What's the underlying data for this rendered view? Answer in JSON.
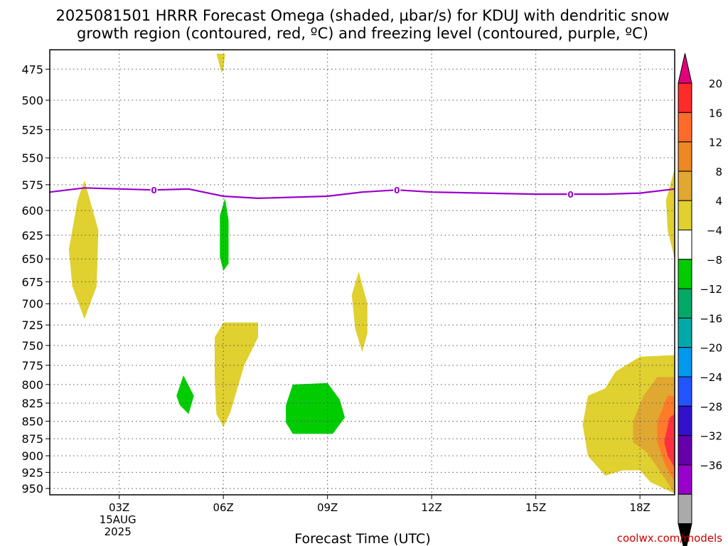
{
  "title_line1": "2025081501 HRRR Forecast Omega (shaded, µbar/s) for KDUJ with dendritic snow",
  "title_line2": "growth region (contoured, red, ºC) and freezing level (contoured, purple, ºC)",
  "credit": "coolwx.com/models",
  "chart_data": {
    "type": "heatmap",
    "title": "2025081501 HRRR Forecast Omega (shaded, µbar/s) for KDUJ with dendritic snow growth region (contoured, red, ºC) and freezing level (contoured, purple, ºC)",
    "xlabel": "Forecast Time (UTC)",
    "ylabel": "",
    "x_ticks": [
      {
        "hour": 3,
        "label": "03Z",
        "sub1": "15AUG",
        "sub2": "2025"
      },
      {
        "hour": 6,
        "label": "06Z"
      },
      {
        "hour": 9,
        "label": "09Z"
      },
      {
        "hour": 12,
        "label": "12Z"
      },
      {
        "hour": 15,
        "label": "15Z"
      },
      {
        "hour": 18,
        "label": "18Z"
      }
    ],
    "xlim": [
      1,
      19
    ],
    "y_levels": [
      475,
      500,
      525,
      550,
      575,
      600,
      625,
      650,
      675,
      700,
      725,
      750,
      775,
      800,
      825,
      850,
      875,
      900,
      925,
      950
    ],
    "ylim_hpa": [
      460,
      960
    ],
    "y_axis": "log-pressure (inverted)",
    "grid": true,
    "colorbar": {
      "labels": [
        "20",
        "16",
        "12",
        "8",
        "4",
        "−4",
        "−8",
        "−12",
        "−16",
        "−20",
        "−24",
        "−28",
        "−32",
        "−36"
      ],
      "colors": [
        "#e0007a",
        "#ff2a2a",
        "#ff6a2a",
        "#ee8822",
        "#e0a830",
        "#e0d030",
        "#ffffff",
        "#00cc00",
        "#00aa66",
        "#00aaaa",
        "#0099ee",
        "#2255ff",
        "#3311cc",
        "#6600aa",
        "#9900cc",
        "#aaaaaa",
        "#000000"
      ]
    },
    "freezing_level": {
      "label": "0",
      "color": "#9900cc",
      "points": [
        [
          1.0,
          582
        ],
        [
          2.0,
          578
        ],
        [
          4.0,
          580
        ],
        [
          5.0,
          579
        ],
        [
          6.0,
          586
        ],
        [
          7.0,
          588
        ],
        [
          9.0,
          586
        ],
        [
          10.0,
          582
        ],
        [
          11.0,
          580
        ],
        [
          12.0,
          582
        ],
        [
          15.0,
          584
        ],
        [
          17.0,
          584
        ],
        [
          18.0,
          583
        ],
        [
          19.0,
          579
        ]
      ],
      "label_hours": [
        4,
        11,
        16
      ]
    },
    "omega_regions": [
      {
        "level": "4 to 8",
        "color": "#e0d030",
        "points": [
          [
            2.0,
            571
          ],
          [
            2.4,
            620
          ],
          [
            2.35,
            680
          ],
          [
            2.0,
            718
          ],
          [
            1.65,
            680
          ],
          [
            1.55,
            640
          ],
          [
            1.8,
            590
          ]
        ]
      },
      {
        "level": "4 to 8",
        "color": "#e0d030",
        "points": [
          [
            5.8,
            463
          ],
          [
            6.05,
            463
          ],
          [
            6.0,
            475
          ],
          [
            5.95,
            478
          ]
        ]
      },
      {
        "level": "-4 to -8",
        "color": "#00cc00",
        "points": [
          [
            6.05,
            588
          ],
          [
            6.15,
            610
          ],
          [
            6.15,
            655
          ],
          [
            6.0,
            663
          ],
          [
            5.9,
            648
          ],
          [
            5.9,
            605
          ]
        ]
      },
      {
        "level": "4 to 8",
        "color": "#e0d030",
        "points": [
          [
            9.9,
            664
          ],
          [
            10.15,
            700
          ],
          [
            10.15,
            735
          ],
          [
            10.0,
            758
          ],
          [
            9.8,
            730
          ],
          [
            9.7,
            690
          ]
        ]
      },
      {
        "level": "4 to 8",
        "color": "#e0d030",
        "points": [
          [
            6.0,
            722
          ],
          [
            7.0,
            722
          ],
          [
            7.0,
            740
          ],
          [
            6.6,
            775
          ],
          [
            6.2,
            838
          ],
          [
            6.0,
            858
          ],
          [
            5.8,
            840
          ],
          [
            5.75,
            790
          ],
          [
            5.75,
            740
          ]
        ]
      },
      {
        "level": "-4 to -8",
        "color": "#00cc00",
        "points": [
          [
            4.85,
            788
          ],
          [
            5.15,
            815
          ],
          [
            5.0,
            840
          ],
          [
            4.75,
            828
          ],
          [
            4.65,
            815
          ]
        ]
      },
      {
        "level": "-4 to -8",
        "color": "#00cc00",
        "points": [
          [
            8.0,
            800
          ],
          [
            9.0,
            798
          ],
          [
            9.35,
            820
          ],
          [
            9.5,
            845
          ],
          [
            9.15,
            868
          ],
          [
            8.0,
            868
          ],
          [
            7.8,
            852
          ],
          [
            7.8,
            828
          ]
        ]
      },
      {
        "level": "4 to 8",
        "color": "#e0d030",
        "points": [
          [
            18.0,
            764
          ],
          [
            19.0,
            762
          ],
          [
            19.0,
            958
          ],
          [
            18.3,
            940
          ],
          [
            18.0,
            922
          ],
          [
            17.5,
            922
          ],
          [
            17.0,
            930
          ],
          [
            16.5,
            900
          ],
          [
            16.35,
            855
          ],
          [
            16.5,
            815
          ],
          [
            17.0,
            805
          ],
          [
            17.3,
            783
          ]
        ]
      },
      {
        "level": "8 to 12",
        "color": "#e0a830",
        "points": [
          [
            18.5,
            790
          ],
          [
            19.0,
            790
          ],
          [
            19.0,
            958
          ],
          [
            18.6,
            925
          ],
          [
            18.2,
            895
          ],
          [
            17.8,
            880
          ],
          [
            17.8,
            850
          ],
          [
            18.1,
            815
          ]
        ]
      },
      {
        "level": "12 to 16",
        "color": "#ff7a2a",
        "points": [
          [
            18.8,
            815
          ],
          [
            19.0,
            815
          ],
          [
            19.0,
            940
          ],
          [
            18.7,
            910
          ],
          [
            18.5,
            880
          ],
          [
            18.5,
            850
          ]
        ]
      },
      {
        "level": "16 to 20",
        "color": "#ff3040",
        "points": [
          [
            18.85,
            845
          ],
          [
            19.0,
            840
          ],
          [
            19.0,
            918
          ],
          [
            18.8,
            900
          ],
          [
            18.7,
            880
          ]
        ]
      },
      {
        "level": "4 to 8",
        "color": "#e0d030",
        "points": [
          [
            19.0,
            560
          ],
          [
            19.0,
            650
          ],
          [
            18.8,
            620
          ],
          [
            18.75,
            590
          ]
        ]
      }
    ],
    "terrain": {
      "color": "#a8552e",
      "surface_hpa": 960
    }
  }
}
